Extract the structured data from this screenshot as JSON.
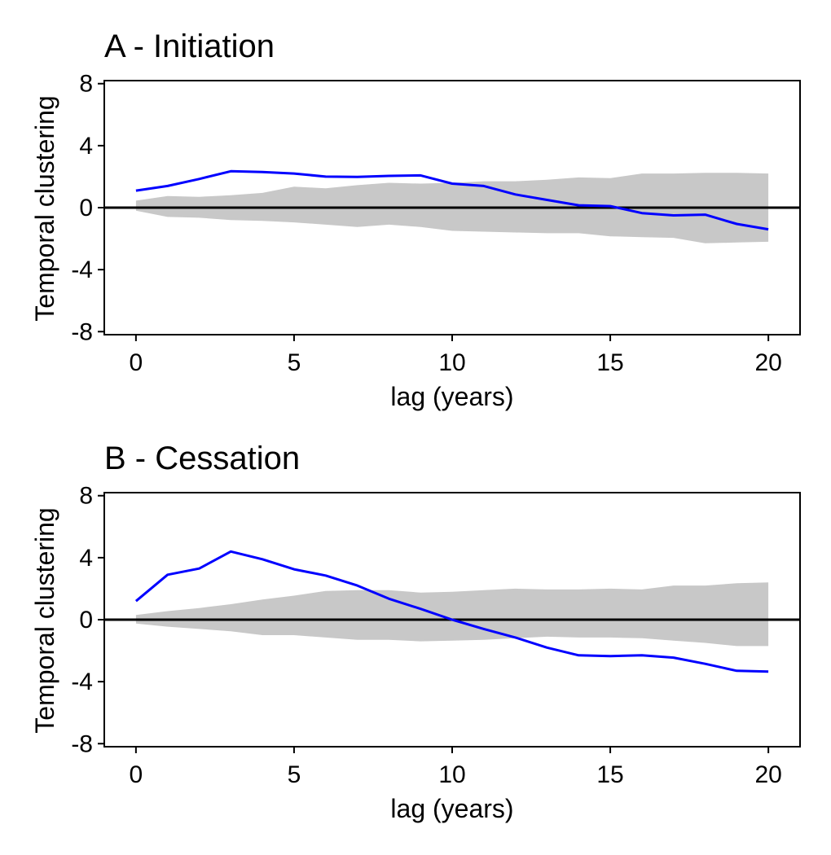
{
  "colors": {
    "line": "#0000ff",
    "band": "#c8c8c8",
    "zero_line": "#000000",
    "axis": "#000000",
    "background": "#ffffff"
  },
  "chart_data": [
    {
      "type": "line",
      "title": "A - Initiation",
      "xlabel": "lag (years)",
      "ylabel": "Temporal clustering",
      "xlim": [
        0,
        20
      ],
      "ylim": [
        -8,
        8
      ],
      "x_ticks": [
        0,
        5,
        10,
        15,
        20
      ],
      "y_ticks": [
        -8,
        -4,
        0,
        4,
        8
      ],
      "y_tick_labels": [
        "-8",
        "-4",
        "0",
        "4",
        "8"
      ],
      "x_tick_labels": [
        "0",
        "5",
        "10",
        "15",
        "20"
      ],
      "grid": false,
      "legend": "none",
      "reference_line_y": 0,
      "x": [
        0,
        1,
        2,
        3,
        4,
        5,
        6,
        7,
        8,
        9,
        10,
        11,
        12,
        13,
        14,
        15,
        16,
        17,
        18,
        19,
        20
      ],
      "series": [
        {
          "values": [
            1.1,
            1.4,
            1.85,
            2.35,
            2.3,
            2.2,
            2.0,
            1.98,
            2.05,
            2.08,
            1.55,
            1.4,
            0.85,
            0.5,
            0.15,
            0.1,
            -0.35,
            -0.5,
            -0.45,
            -1.05,
            -1.4
          ]
        }
      ],
      "band": {
        "upper": [
          0.45,
          0.75,
          0.7,
          0.8,
          0.95,
          1.35,
          1.25,
          1.45,
          1.6,
          1.55,
          1.6,
          1.7,
          1.7,
          1.8,
          1.95,
          1.9,
          2.2,
          2.2,
          2.25,
          2.25,
          2.2
        ],
        "lower": [
          -0.2,
          -0.6,
          -0.65,
          -0.8,
          -0.85,
          -0.95,
          -1.1,
          -1.25,
          -1.1,
          -1.25,
          -1.5,
          -1.55,
          -1.6,
          -1.65,
          -1.65,
          -1.85,
          -1.9,
          -1.95,
          -2.3,
          -2.25,
          -2.2
        ]
      }
    },
    {
      "type": "line",
      "title": "B - Cessation",
      "xlabel": "lag (years)",
      "ylabel": "Temporal clustering",
      "xlim": [
        0,
        20
      ],
      "ylim": [
        -8,
        8
      ],
      "x_ticks": [
        0,
        5,
        10,
        15,
        20
      ],
      "y_ticks": [
        -8,
        -4,
        0,
        4,
        8
      ],
      "y_tick_labels": [
        "-8",
        "-4",
        "0",
        "4",
        "8"
      ],
      "x_tick_labels": [
        "0",
        "5",
        "10",
        "15",
        "20"
      ],
      "grid": false,
      "legend": "none",
      "reference_line_y": 0,
      "x": [
        0,
        1,
        2,
        3,
        4,
        5,
        6,
        7,
        8,
        9,
        10,
        11,
        12,
        13,
        14,
        15,
        16,
        17,
        18,
        19,
        20
      ],
      "series": [
        {
          "values": [
            1.2,
            2.9,
            3.3,
            4.4,
            3.9,
            3.25,
            2.85,
            2.2,
            1.35,
            0.7,
            0.0,
            -0.6,
            -1.15,
            -1.8,
            -2.3,
            -2.35,
            -2.3,
            -2.45,
            -2.85,
            -3.3,
            -3.35
          ]
        }
      ],
      "band": {
        "upper": [
          0.3,
          0.55,
          0.75,
          1.0,
          1.3,
          1.55,
          1.85,
          1.9,
          1.9,
          1.75,
          1.8,
          1.9,
          2.0,
          1.95,
          1.95,
          2.0,
          1.95,
          2.2,
          2.2,
          2.35,
          2.4
        ],
        "lower": [
          -0.25,
          -0.45,
          -0.6,
          -0.75,
          -1.0,
          -1.0,
          -1.15,
          -1.3,
          -1.3,
          -1.4,
          -1.35,
          -1.3,
          -1.2,
          -1.1,
          -1.15,
          -1.15,
          -1.2,
          -1.35,
          -1.5,
          -1.7,
          -1.7
        ]
      }
    }
  ]
}
